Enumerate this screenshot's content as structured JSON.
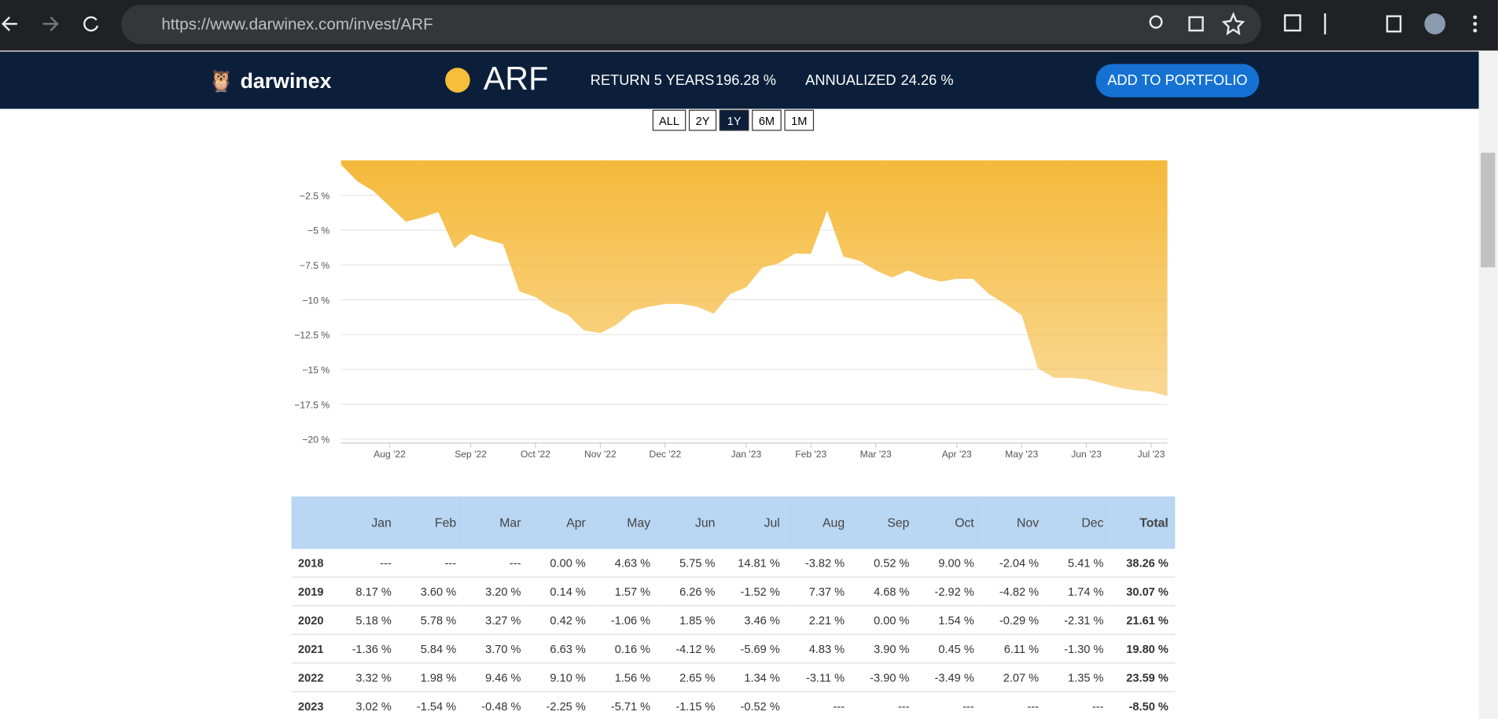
{
  "browser": {
    "url": "https://www.darwinex.com/invest/ARF"
  },
  "header": {
    "brand": "darwinex",
    "symbol": "ARF",
    "return_label": "RETURN 5 YEARS",
    "return_value": "196.28 %",
    "annualized_label": "ANNUALIZED",
    "annualized_value": "24.26 %",
    "button": "ADD TO PORTFOLIO"
  },
  "ranges": {
    "options": [
      "ALL",
      "2Y",
      "1Y",
      "6M",
      "1M"
    ],
    "active": "1Y"
  },
  "chart_data": {
    "type": "area",
    "color": "#f5b93a",
    "grid": true,
    "categories": [
      null,
      null,
      null,
      "Aug '22",
      null,
      null,
      null,
      null,
      "Sep '22",
      null,
      null,
      null,
      "Oct '22",
      null,
      null,
      null,
      "Nov '22",
      null,
      null,
      null,
      "Dec '22",
      null,
      null,
      null,
      null,
      "Jan '23",
      null,
      null,
      null,
      "Feb '23",
      null,
      null,
      null,
      "Mar '23",
      null,
      null,
      null,
      null,
      "Apr '23",
      null,
      null,
      null,
      "May '23",
      null,
      null,
      null,
      "Jun '23",
      null,
      null,
      null,
      "Jul '23",
      null
    ],
    "values": [
      -0.3,
      -1.5,
      -2.2,
      -3.3,
      -4.4,
      -4.1,
      -3.7,
      -6.3,
      -5.3,
      -5.7,
      -6.0,
      -9.4,
      -9.8,
      -10.6,
      -11.1,
      -12.2,
      -12.4,
      -11.8,
      -10.8,
      -10.5,
      -10.3,
      -10.3,
      -10.5,
      -11.0,
      -9.6,
      -9.1,
      -7.7,
      -7.4,
      -6.7,
      -6.7,
      -3.6,
      -6.9,
      -7.2,
      -7.9,
      -8.4,
      -7.9,
      -8.4,
      -8.7,
      -8.5,
      -8.5,
      -9.6,
      -10.3,
      -11.1,
      -14.9,
      -15.6,
      -15.6,
      -15.7,
      -16.0,
      -16.3,
      -16.5,
      -16.6,
      -16.9
    ],
    "ylim": [
      -20,
      0
    ],
    "yticks": [
      {
        "value": -2.5,
        "label": "−2.5 %"
      },
      {
        "value": -5,
        "label": "−5 %"
      },
      {
        "value": -7.5,
        "label": "−7.5 %"
      },
      {
        "value": -10,
        "label": "−10 %"
      },
      {
        "value": -12.5,
        "label": "−12.5 %"
      },
      {
        "value": -15,
        "label": "−15 %"
      },
      {
        "value": -17.5,
        "label": "−17.5 %"
      },
      {
        "value": -20,
        "label": "−20 %"
      }
    ]
  },
  "table": {
    "header": [
      "Jan",
      "Feb",
      "Mar",
      "Apr",
      "May",
      "Jun",
      "Jul",
      "Aug",
      "Sep",
      "Oct",
      "Nov",
      "Dec",
      "Total"
    ],
    "rows": [
      [
        "2018",
        "---",
        "---",
        "---",
        "0.00 %",
        "4.63 %",
        "5.75 %",
        "14.81 %",
        "-3.82 %",
        "0.52 %",
        "9.00 %",
        "-2.04 %",
        "5.41 %",
        "38.26 %"
      ],
      [
        "2019",
        "8.17 %",
        "3.60 %",
        "3.20 %",
        "0.14 %",
        "1.57 %",
        "6.26 %",
        "-1.52 %",
        "7.37 %",
        "4.68 %",
        "-2.92 %",
        "-4.82 %",
        "1.74 %",
        "30.07 %"
      ],
      [
        "2020",
        "5.18 %",
        "5.78 %",
        "3.27 %",
        "0.42 %",
        "-1.06 %",
        "1.85 %",
        "3.46 %",
        "2.21 %",
        "0.00 %",
        "1.54 %",
        "-0.29 %",
        "-2.31 %",
        "21.61 %"
      ],
      [
        "2021",
        "-1.36 %",
        "5.84 %",
        "3.70 %",
        "6.63 %",
        "0.16 %",
        "-4.12 %",
        "-5.69 %",
        "4.83 %",
        "3.90 %",
        "0.45 %",
        "6.11 %",
        "-1.30 %",
        "19.80 %"
      ],
      [
        "2022",
        "3.32 %",
        "1.98 %",
        "9.46 %",
        "9.10 %",
        "1.56 %",
        "2.65 %",
        "1.34 %",
        "-3.11 %",
        "-3.90 %",
        "-3.49 %",
        "2.07 %",
        "1.35 %",
        "23.59 %"
      ],
      [
        "2023",
        "3.02 %",
        "-1.54 %",
        "-0.48 %",
        "-2.25 %",
        "-5.71 %",
        "-1.15 %",
        "-0.52 %",
        "---",
        "---",
        "---",
        "---",
        "---",
        "-8.50 %"
      ]
    ]
  }
}
